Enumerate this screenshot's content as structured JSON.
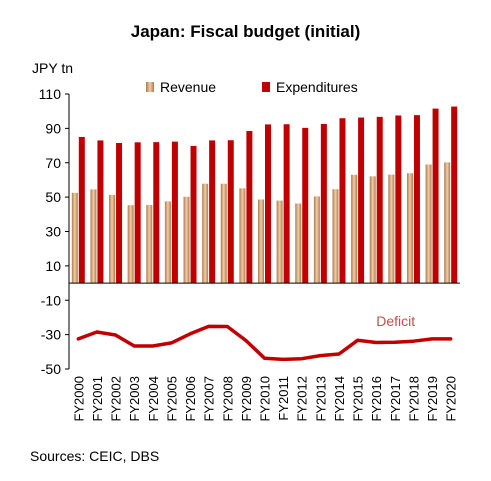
{
  "title": "Japan: Fiscal budget (initial)",
  "unit_label": "JPY tn",
  "source": "Sources: CEIC, DBS",
  "colors": {
    "revenue_light": "#f2cda8",
    "revenue_dark": "#b07a4a",
    "expenditures": "#c00000",
    "deficit_line": "#c00000",
    "deficit_label": "#c0504d",
    "axis": "#000000"
  },
  "chart_data": {
    "type": "bar",
    "categories": [
      "FY2000",
      "FY2001",
      "FY2002",
      "FY2003",
      "FY2004",
      "FY2005",
      "FY2006",
      "FY2007",
      "FY2008",
      "FY2009",
      "FY2010",
      "FY2011",
      "FY2012",
      "FY2013",
      "FY2014",
      "FY2015",
      "FY2016",
      "FY2017",
      "FY2018",
      "FY2019",
      "FY2020"
    ],
    "series": [
      {
        "name": "Revenue",
        "type": "bar",
        "values": [
          52.5,
          54.5,
          51.3,
          45.3,
          45.4,
          47.5,
          50.2,
          57.8,
          57.8,
          55.1,
          48.6,
          48.0,
          46.3,
          50.4,
          54.6,
          63.0,
          62.1,
          63.1,
          63.9,
          69.0,
          70.2
        ]
      },
      {
        "name": "Expenditures",
        "type": "bar",
        "values": [
          85.0,
          83.0,
          81.5,
          81.9,
          82.0,
          82.3,
          79.8,
          83.0,
          83.1,
          88.5,
          92.3,
          92.4,
          90.3,
          92.6,
          95.9,
          96.3,
          96.7,
          97.5,
          97.7,
          101.5,
          102.7
        ]
      },
      {
        "name": "Deficit",
        "type": "line",
        "values": [
          -32.5,
          -28.5,
          -30.2,
          -36.6,
          -36.6,
          -34.8,
          -29.6,
          -25.2,
          -25.3,
          -33.4,
          -43.7,
          -44.4,
          -44.0,
          -42.2,
          -41.3,
          -33.3,
          -34.6,
          -34.4,
          -33.8,
          -32.5,
          -32.5
        ]
      }
    ],
    "xlabel": "",
    "ylabel": "JPY tn",
    "ylim": [
      -50,
      110
    ],
    "yticks": [
      110,
      90,
      70,
      50,
      30,
      10,
      -10,
      -30,
      -50
    ],
    "legend": "top",
    "annotations": [
      {
        "text": "Deficit",
        "x": "FY2016",
        "y": -22
      }
    ]
  }
}
